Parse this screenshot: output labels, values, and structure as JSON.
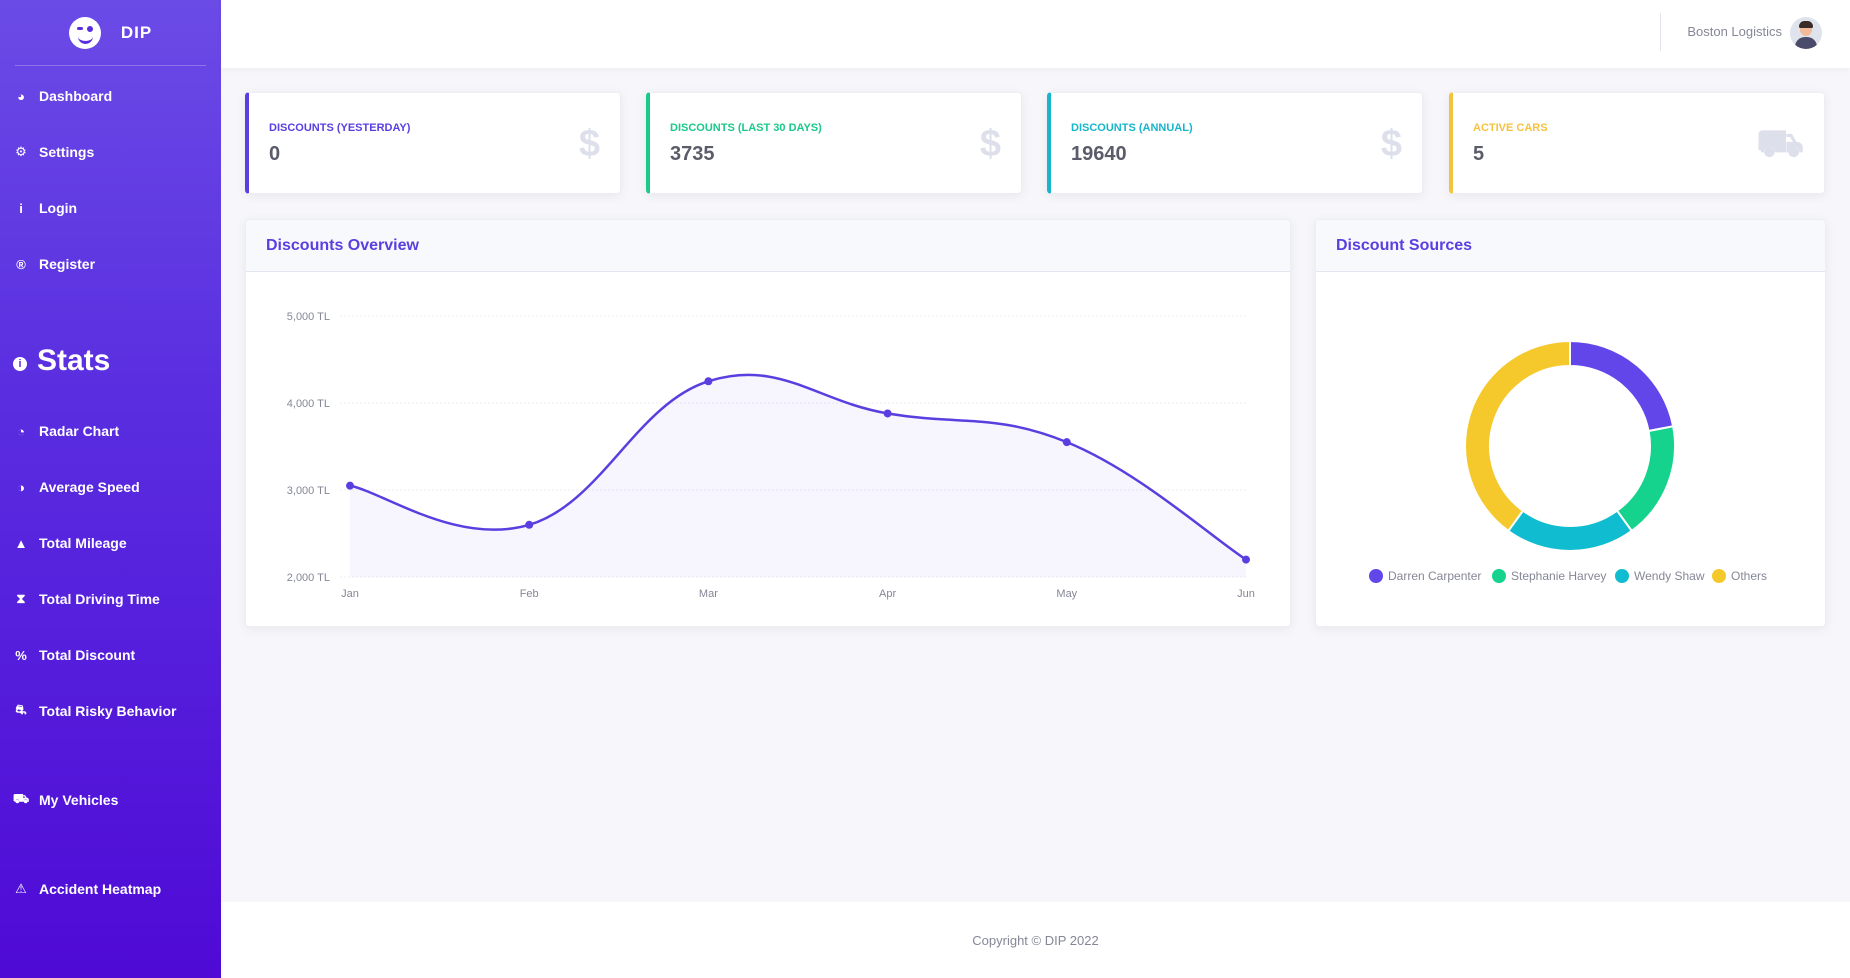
{
  "brand": {
    "name": "DIP"
  },
  "sidebar": {
    "items": [
      {
        "label": "Dashboard",
        "icon": "dashboard-icon",
        "glyph": "◕"
      },
      {
        "label": "Settings",
        "icon": "gears-icon",
        "glyph": "⚙"
      },
      {
        "label": "Login",
        "icon": "info-icon",
        "glyph": "i"
      },
      {
        "label": "Register",
        "icon": "registered-icon",
        "glyph": "®"
      }
    ],
    "section": {
      "label": "Stats",
      "icon": "info-circle-icon",
      "glyph": "i"
    },
    "stats_items": [
      {
        "label": "Radar Chart",
        "icon": "radar-icon",
        "glyph": "◔"
      },
      {
        "label": "Average Speed",
        "icon": "speedometer-icon",
        "glyph": "◑"
      },
      {
        "label": "Total Mileage",
        "icon": "road-icon",
        "glyph": "▲"
      },
      {
        "label": "Total Driving Time",
        "icon": "hourglass-icon",
        "glyph": "⧗"
      },
      {
        "label": "Total Discount",
        "icon": "percent-icon",
        "glyph": "%"
      },
      {
        "label": "Total Risky Behavior",
        "icon": "car-crash-icon",
        "glyph": "⛐"
      }
    ],
    "vehicles_item": {
      "label": "My Vehicles",
      "icon": "car-icon",
      "glyph": "⛟"
    },
    "heatmap_item": {
      "label": "Accident Heatmap",
      "icon": "alarm-icon",
      "glyph": "⚠"
    }
  },
  "topbar": {
    "user_name": "Boston Logistics"
  },
  "stats": [
    {
      "label": "Discounts (Yesterday)",
      "value": "0",
      "color": "#5a3ee0",
      "icon": "dollar-icon",
      "glyph": "$"
    },
    {
      "label": "Discounts (Last 30 Days)",
      "value": "3735",
      "color": "#1cc88a",
      "icon": "dollar-icon",
      "glyph": "$"
    },
    {
      "label": "Discounts (Annual)",
      "value": "19640",
      "color": "#17b6cb",
      "icon": "dollar-icon",
      "glyph": "$"
    },
    {
      "label": "Active Cars",
      "value": "5",
      "color": "#f6c23e",
      "icon": "car-icon",
      "glyph": "⛟"
    }
  ],
  "area_panel": {
    "title": "Discounts Overview"
  },
  "pie_panel": {
    "title": "Discount Sources"
  },
  "footer": {
    "text": "Copyright © DIP 2022"
  },
  "chart_data": [
    {
      "type": "line",
      "title": "Discounts Overview",
      "categories": [
        "Jan",
        "Feb",
        "Mar",
        "Apr",
        "May",
        "Jun"
      ],
      "values": [
        3050,
        2600,
        4250,
        3880,
        3550,
        2200
      ],
      "y_ticks": [
        "2,000 TL",
        "3,000 TL",
        "4,000 TL",
        "5,000 TL"
      ],
      "ylim": [
        2000,
        5000
      ],
      "grid": true,
      "color": "#5a3ee0"
    },
    {
      "type": "pie",
      "title": "Discount Sources",
      "labels": [
        "Darren Carpenter",
        "Stephanie Harvey",
        "Wendy Shaw",
        "Others"
      ],
      "values": [
        22,
        18,
        20,
        40
      ],
      "colors": [
        "#6246ea",
        "#15d38d",
        "#10bccf",
        "#f5c82c"
      ],
      "legend": "bottom"
    }
  ]
}
